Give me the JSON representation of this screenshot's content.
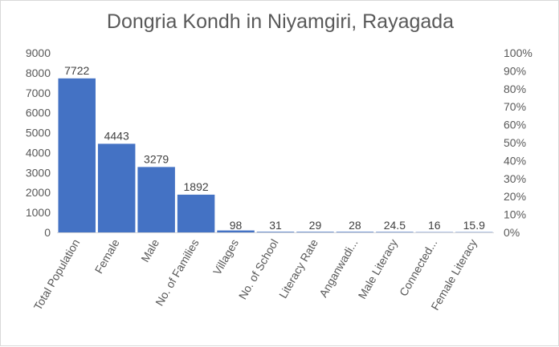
{
  "chart_data": {
    "type": "bar",
    "title": "Dongria Kondh in Niyamgiri, Rayagada",
    "categories": [
      "Total Population",
      "Female",
      "Male",
      "No. of Families",
      "Villages",
      "No. of School",
      "Literacy Rate",
      "Anganwadi...",
      "Male Literacy",
      "Connected...",
      "Female Literacy"
    ],
    "values": [
      7722,
      4443,
      3279,
      1892,
      98,
      31,
      29,
      28,
      24.5,
      16,
      15.9
    ],
    "data_labels": [
      "7722",
      "4443",
      "3279",
      "1892",
      "98",
      "31",
      "29",
      "28",
      "24.5",
      "16",
      "15.9"
    ],
    "ylim": [
      0,
      9000
    ],
    "yticks": [
      "0",
      "1000",
      "2000",
      "3000",
      "4000",
      "5000",
      "6000",
      "7000",
      "8000",
      "9000"
    ],
    "y2ticks": [
      "0%",
      "10%",
      "20%",
      "30%",
      "40%",
      "50%",
      "60%",
      "70%",
      "80%",
      "90%",
      "100%"
    ],
    "bar_color": "#4472c4",
    "grid": false,
    "legend": "none"
  }
}
